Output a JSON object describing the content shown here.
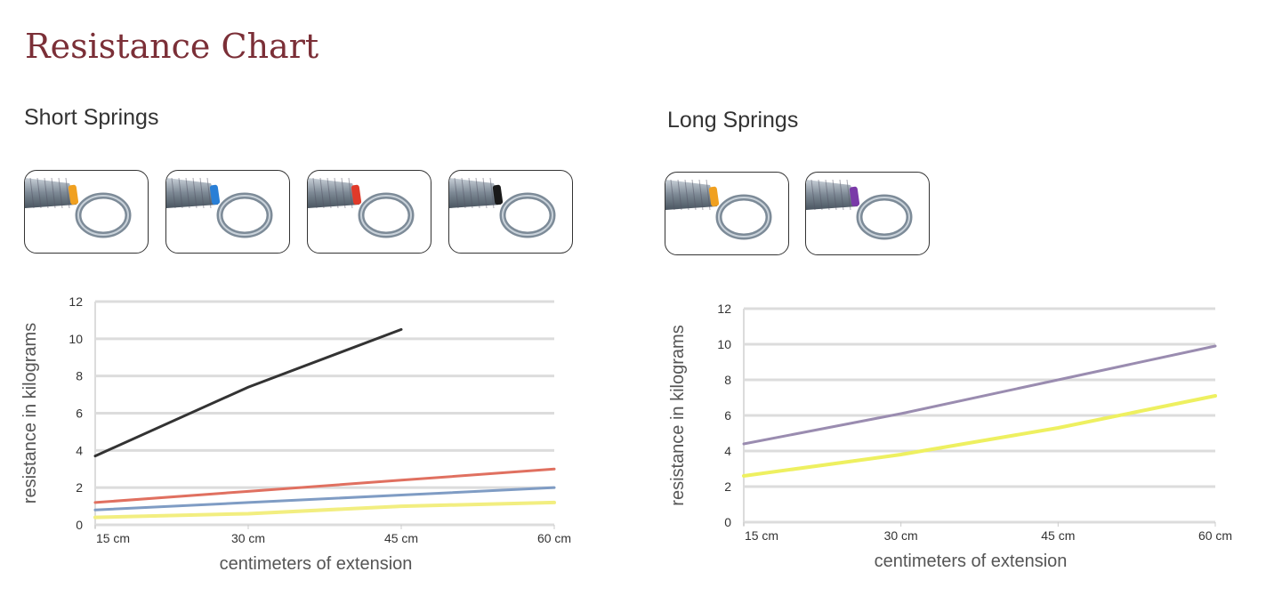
{
  "title": "Resistance Chart",
  "sections": [
    {
      "heading": "Short Springs",
      "springs": [
        {
          "name": "orange",
          "color": "#f0a020"
        },
        {
          "name": "blue",
          "color": "#2a7fd6"
        },
        {
          "name": "red",
          "color": "#e03a2a"
        },
        {
          "name": "black",
          "color": "#1a1a1a"
        }
      ]
    },
    {
      "heading": "Long Springs",
      "springs": [
        {
          "name": "orange",
          "color": "#f0a020"
        },
        {
          "name": "purple",
          "color": "#7a3aa8"
        }
      ]
    }
  ],
  "chart_data": [
    {
      "type": "line",
      "title": "Short Springs",
      "xlabel": "centimeters of extension",
      "ylabel": "resistance in kilograms",
      "categories": [
        "15 cm",
        "30 cm",
        "45 cm",
        "60 cm"
      ],
      "yticks": [
        "0",
        "2",
        "4",
        "6",
        "8",
        "10",
        "12"
      ],
      "ylim": [
        0,
        12
      ],
      "grid": true,
      "series": [
        {
          "name": "black",
          "color": "#333333",
          "values": [
            3.7,
            7.4,
            10.5,
            null
          ]
        },
        {
          "name": "red",
          "color": "#e07060",
          "values": [
            1.2,
            1.8,
            2.4,
            3.0
          ]
        },
        {
          "name": "blue",
          "color": "#7f9cc4",
          "values": [
            0.8,
            1.2,
            1.6,
            2.0
          ]
        },
        {
          "name": "yellow",
          "color": "#f2ee80",
          "values": [
            0.4,
            0.6,
            1.0,
            1.2
          ]
        }
      ]
    },
    {
      "type": "line",
      "title": "Long Springs",
      "xlabel": "centimeters of extension",
      "ylabel": "resistance in kilograms",
      "categories": [
        "15 cm",
        "30 cm",
        "45 cm",
        "60 cm"
      ],
      "yticks": [
        "0",
        "2",
        "4",
        "6",
        "8",
        "10",
        "12"
      ],
      "ylim": [
        0,
        12
      ],
      "grid": true,
      "series": [
        {
          "name": "purple",
          "color": "#9a8cb0",
          "values": [
            4.4,
            6.1,
            8.0,
            9.9
          ]
        },
        {
          "name": "yellow",
          "color": "#eef060",
          "values": [
            2.6,
            3.8,
            5.3,
            7.1
          ]
        }
      ]
    }
  ]
}
